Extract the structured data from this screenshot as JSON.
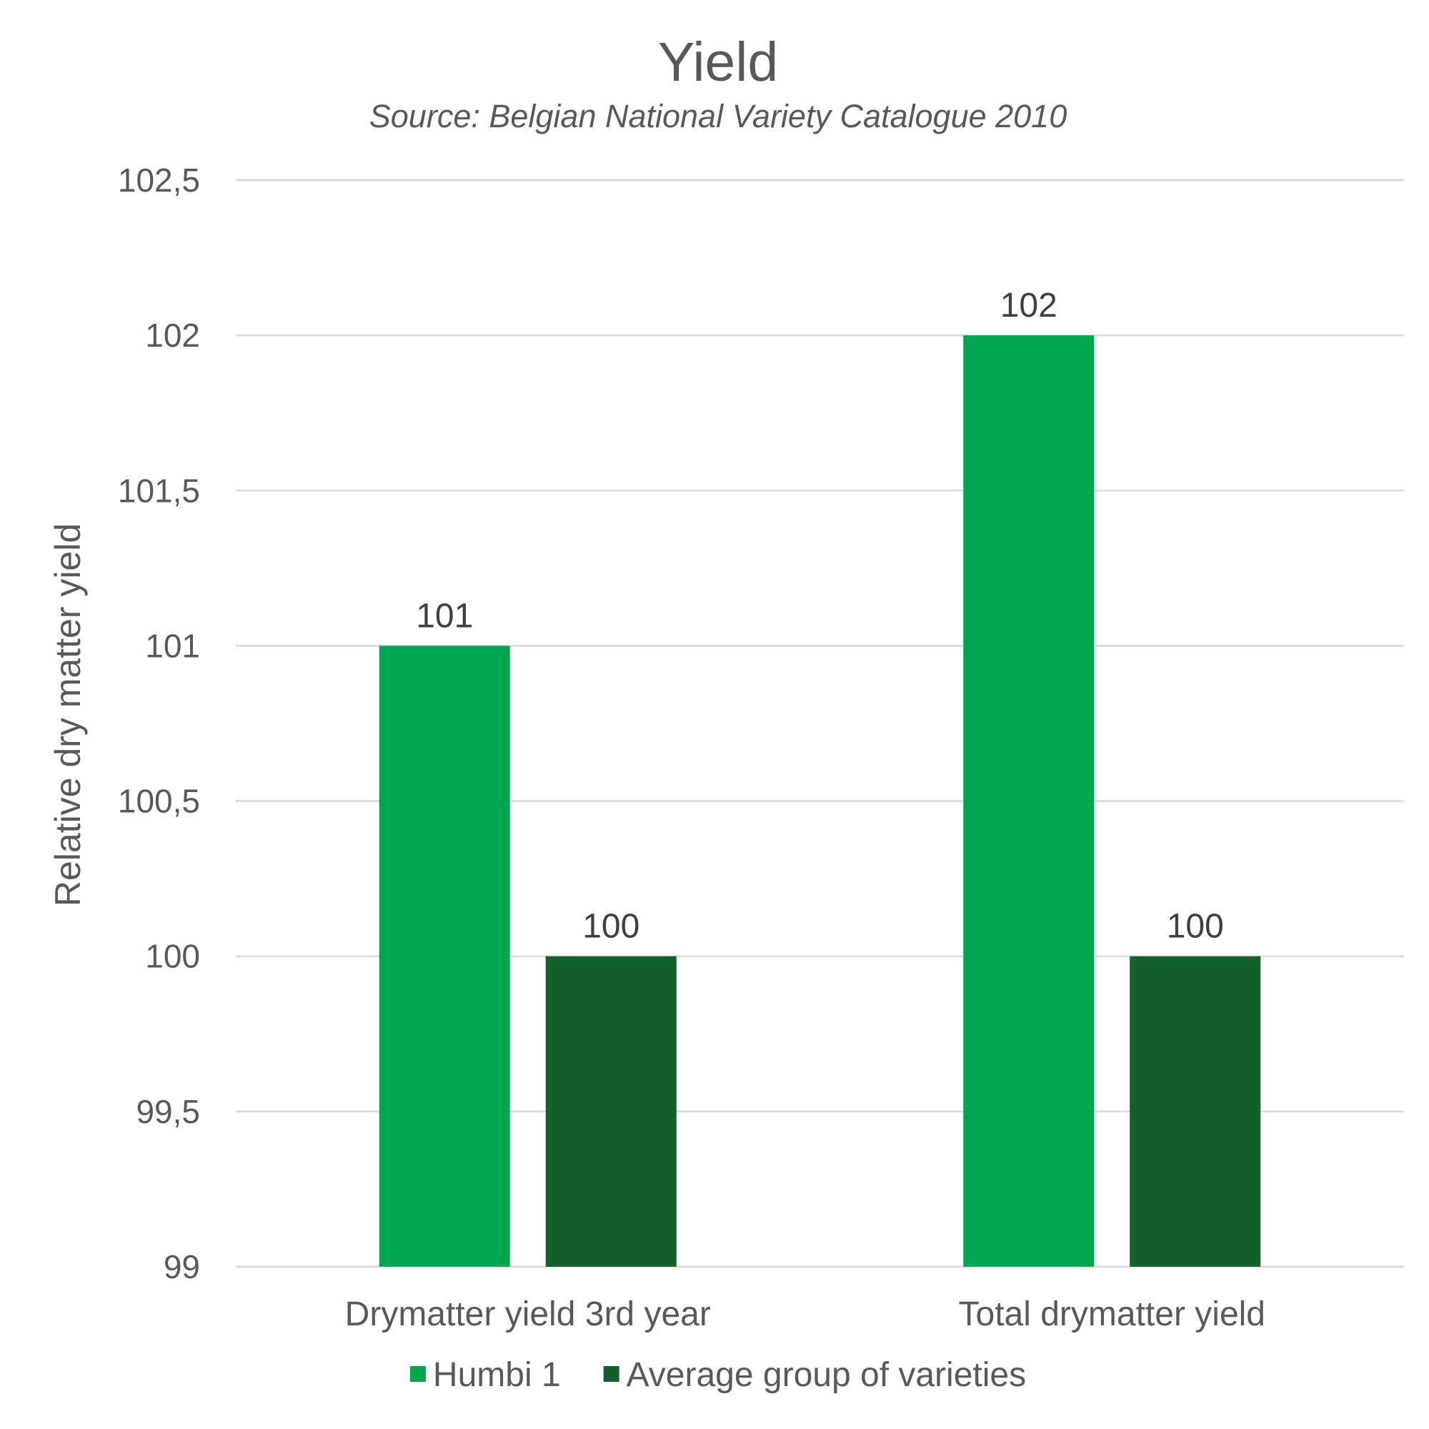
{
  "chart_data": {
    "type": "bar",
    "title": "Yield",
    "subtitle": "Source: Belgian National Variety Catalogue 2010",
    "xlabel": "",
    "ylabel": "Relative dry matter yield",
    "ylim": [
      99,
      102.5
    ],
    "yticks": [
      99,
      99.5,
      100,
      100.5,
      101,
      101.5,
      102,
      102.5
    ],
    "ytick_labels": [
      "99",
      "99,5",
      "100",
      "100,5",
      "101",
      "101,5",
      "102",
      "102,5"
    ],
    "categories": [
      "Drymatter yield 3rd year",
      "Total drymatter yield"
    ],
    "series": [
      {
        "name": "Humbi 1",
        "color": "#00a651",
        "values": [
          101,
          102
        ]
      },
      {
        "name": "Average group of varieties",
        "color": "#155f2d",
        "values": [
          100,
          100
        ]
      }
    ],
    "data_labels": true,
    "grid": true,
    "legend_position": "bottom"
  }
}
